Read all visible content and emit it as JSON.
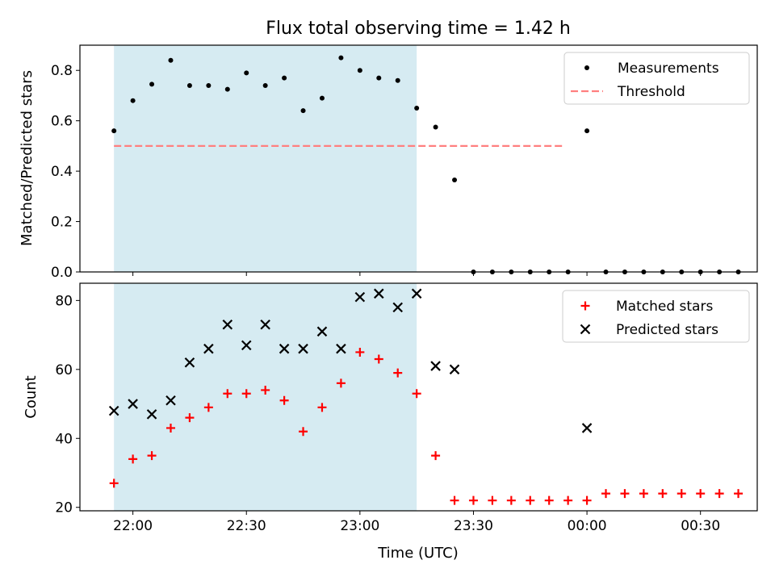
{
  "figure": {
    "title": "Flux total observing time = 1.42 h",
    "xlabel": "Time (UTC)"
  },
  "chart_data": [
    {
      "type": "scatter",
      "panel": "top",
      "ylabel": "Matched/Predicted stars",
      "xlim": [
        "21:46",
        "00:45"
      ],
      "ylim": [
        0,
        0.9
      ],
      "yticks": [
        0.0,
        0.2,
        0.4,
        0.6,
        0.8
      ],
      "ytick_labels": [
        "0.0",
        "0.2",
        "0.4",
        "0.6",
        "0.8"
      ],
      "xticks": [
        "22:00",
        "22:30",
        "23:00",
        "23:30",
        "00:00",
        "00:30"
      ],
      "shaded_span": {
        "x": [
          "21:55",
          "23:15"
        ],
        "color": "#add8e6"
      },
      "threshold_line": {
        "name": "Threshold",
        "y": 0.5,
        "x": [
          "21:55",
          "23:54"
        ],
        "color": "#ff7f7f",
        "style": "dashed"
      },
      "legend": {
        "placement": "top-right",
        "entries": [
          "Measurements",
          "Threshold"
        ]
      },
      "series": [
        {
          "name": "Measurements",
          "marker": "dot",
          "color": "#000000",
          "x": [
            "21:55",
            "22:00",
            "22:05",
            "22:10",
            "22:15",
            "22:20",
            "22:25",
            "22:30",
            "22:35",
            "22:40",
            "22:45",
            "22:50",
            "22:55",
            "23:00",
            "23:05",
            "23:10",
            "23:15",
            "23:20",
            "23:25",
            "23:30",
            "23:35",
            "23:40",
            "23:45",
            "23:50",
            "23:55",
            "00:00",
            "00:05",
            "00:10",
            "00:15",
            "00:20",
            "00:25",
            "00:30",
            "00:35",
            "00:40"
          ],
          "values": [
            0.56,
            0.68,
            0.745,
            0.84,
            0.74,
            0.74,
            0.725,
            0.79,
            0.74,
            0.77,
            0.64,
            0.69,
            0.85,
            0.8,
            0.77,
            0.76,
            0.65,
            0.575,
            0.365,
            0,
            0,
            0,
            0,
            0,
            0,
            0.56,
            0,
            0,
            0,
            0,
            0,
            0,
            0,
            0
          ]
        }
      ]
    },
    {
      "type": "scatter",
      "panel": "bottom",
      "ylabel": "Count",
      "xlim": [
        "21:46",
        "00:45"
      ],
      "ylim": [
        19,
        85
      ],
      "yticks": [
        20,
        40,
        60,
        80
      ],
      "ytick_labels": [
        "20",
        "40",
        "60",
        "80"
      ],
      "xticks": [
        "22:00",
        "22:30",
        "23:00",
        "23:30",
        "00:00",
        "00:30"
      ],
      "xtick_labels": [
        "22:00",
        "22:30",
        "23:00",
        "23:30",
        "00:00",
        "00:30"
      ],
      "shaded_span": {
        "x": [
          "21:55",
          "23:15"
        ],
        "color": "#add8e6"
      },
      "legend": {
        "placement": "top-right",
        "entries": [
          "Matched stars",
          "Predicted stars"
        ]
      },
      "series": [
        {
          "name": "Matched stars",
          "marker": "plus",
          "color": "#ff0000",
          "x": [
            "21:55",
            "22:00",
            "22:05",
            "22:10",
            "22:15",
            "22:20",
            "22:25",
            "22:30",
            "22:35",
            "22:40",
            "22:45",
            "22:50",
            "22:55",
            "23:00",
            "23:05",
            "23:10",
            "23:15",
            "23:20",
            "23:25",
            "23:30",
            "23:35",
            "23:40",
            "23:45",
            "23:50",
            "23:55",
            "00:00",
            "00:05",
            "00:10",
            "00:15",
            "00:20",
            "00:25",
            "00:30",
            "00:35",
            "00:40"
          ],
          "values": [
            27,
            34,
            35,
            43,
            46,
            49,
            53,
            53,
            54,
            51,
            42,
            49,
            56,
            65,
            63,
            59,
            53,
            35,
            22,
            22,
            22,
            22,
            22,
            22,
            22,
            22,
            24,
            24,
            24,
            24,
            24,
            24,
            24,
            24
          ]
        },
        {
          "name": "Predicted stars",
          "marker": "x",
          "color": "#000000",
          "x": [
            "21:55",
            "22:00",
            "22:05",
            "22:10",
            "22:15",
            "22:20",
            "22:25",
            "22:30",
            "22:35",
            "22:40",
            "22:45",
            "22:50",
            "22:55",
            "23:00",
            "23:05",
            "23:10",
            "23:15",
            "23:20",
            "23:25",
            "00:00"
          ],
          "values": [
            48,
            50,
            47,
            51,
            62,
            66,
            73,
            67,
            73,
            66,
            66,
            71,
            66,
            81,
            82,
            78,
            82,
            61,
            60,
            43
          ]
        }
      ]
    }
  ]
}
